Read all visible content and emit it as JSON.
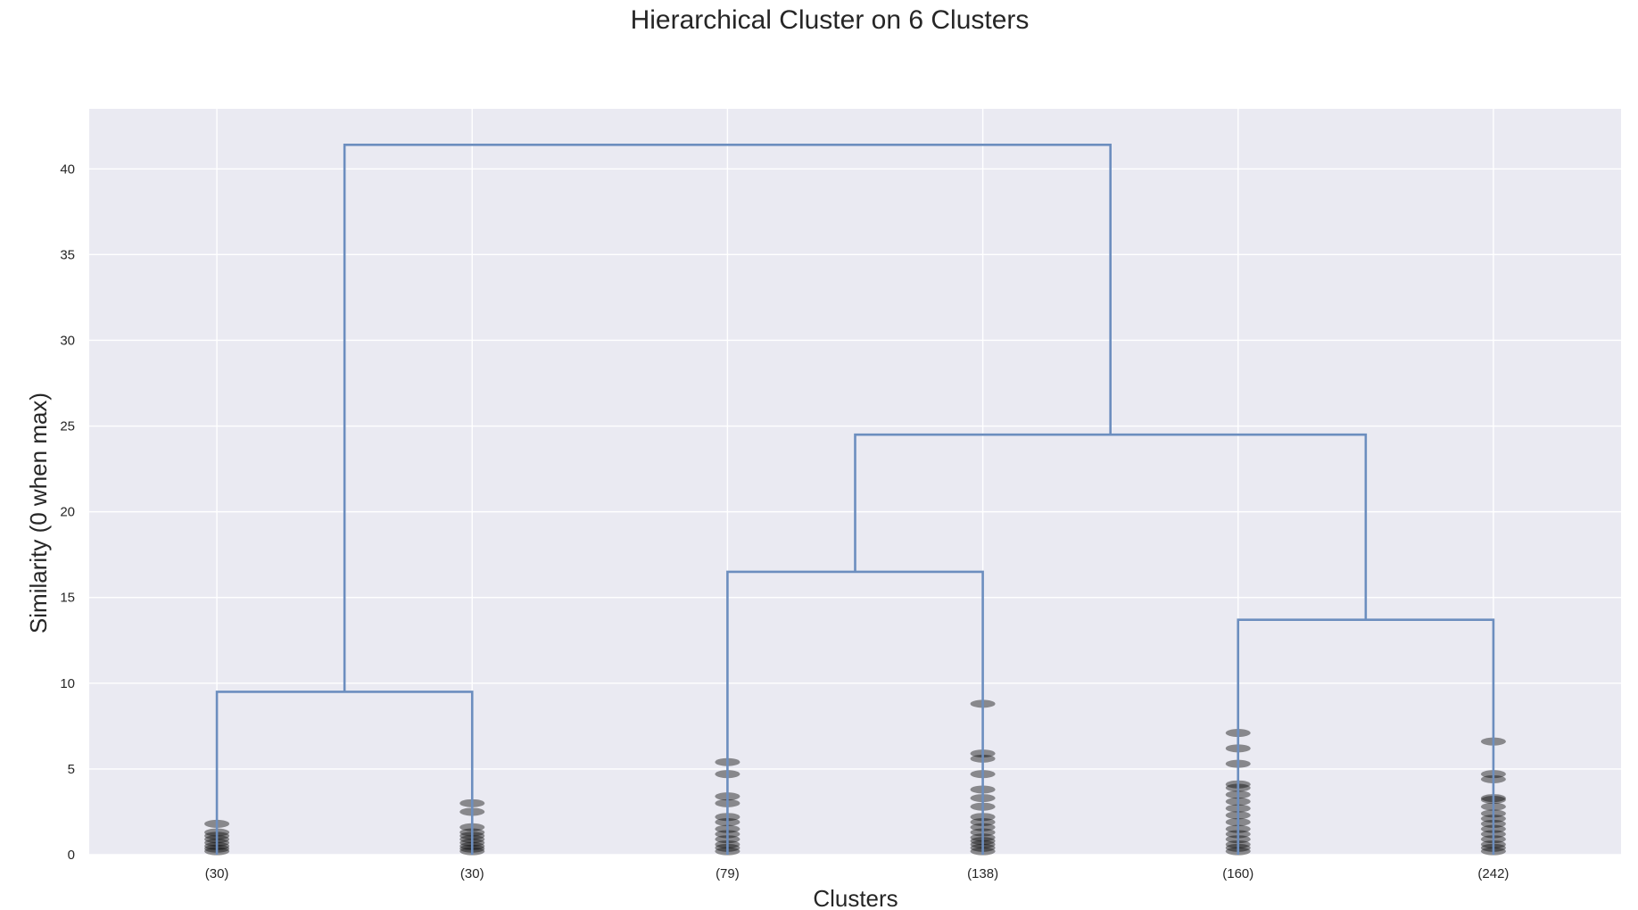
{
  "chart_data": {
    "type": "dendrogram",
    "title": "Hierarchical Cluster on 6 Clusters",
    "xlabel": "Clusters",
    "ylabel": "Similarity (0 when max)",
    "ylim": [
      0,
      43.5
    ],
    "yticks": [
      0,
      5,
      10,
      15,
      20,
      25,
      30,
      35,
      40
    ],
    "grid": true,
    "colors": {
      "background": "#eaeaf2",
      "grid": "#ffffff",
      "link": "#6c8ebf",
      "marker": "#000000"
    },
    "leaves": [
      {
        "label": "(30)",
        "x": 5,
        "merge_heights": [
          0.2,
          0.35,
          0.5,
          0.7,
          0.9,
          1.1,
          1.3,
          1.8
        ]
      },
      {
        "label": "(30)",
        "x": 15,
        "merge_heights": [
          0.2,
          0.35,
          0.5,
          0.7,
          0.9,
          1.1,
          1.3,
          1.6,
          2.5,
          3.0
        ]
      },
      {
        "label": "(79)",
        "x": 25,
        "merge_heights": [
          0.2,
          0.4,
          0.6,
          0.9,
          1.2,
          1.5,
          1.9,
          2.2,
          3.0,
          3.4,
          4.7,
          5.4
        ]
      },
      {
        "label": "(138)",
        "x": 35,
        "merge_heights": [
          0.2,
          0.4,
          0.6,
          0.8,
          1.0,
          1.3,
          1.6,
          1.9,
          2.2,
          2.8,
          3.3,
          3.8,
          4.7,
          5.6,
          5.9,
          8.8
        ]
      },
      {
        "label": "(160)",
        "x": 45,
        "merge_heights": [
          0.2,
          0.4,
          0.6,
          0.9,
          1.2,
          1.5,
          1.9,
          2.3,
          2.7,
          3.1,
          3.5,
          3.9,
          4.1,
          5.3,
          6.2,
          7.1
        ]
      },
      {
        "label": "(242)",
        "x": 55,
        "merge_heights": [
          0.2,
          0.4,
          0.6,
          0.9,
          1.2,
          1.5,
          1.8,
          2.1,
          2.4,
          2.8,
          3.2,
          3.3,
          4.4,
          4.7,
          6.6
        ]
      }
    ],
    "links": [
      {
        "x": [
          5,
          5,
          15,
          15
        ],
        "y": [
          0,
          9.5,
          9.5,
          0
        ]
      },
      {
        "x": [
          25,
          25,
          35,
          35
        ],
        "y": [
          0,
          16.5,
          16.5,
          0
        ]
      },
      {
        "x": [
          45,
          45,
          55,
          55
        ],
        "y": [
          0,
          13.7,
          13.7,
          0
        ]
      },
      {
        "x": [
          30,
          30,
          50,
          50
        ],
        "y": [
          16.5,
          24.5,
          24.5,
          13.7
        ]
      },
      {
        "x": [
          10,
          10,
          40,
          40
        ],
        "y": [
          9.5,
          41.4,
          41.4,
          24.5
        ]
      }
    ],
    "xlim": [
      0,
      60
    ]
  }
}
